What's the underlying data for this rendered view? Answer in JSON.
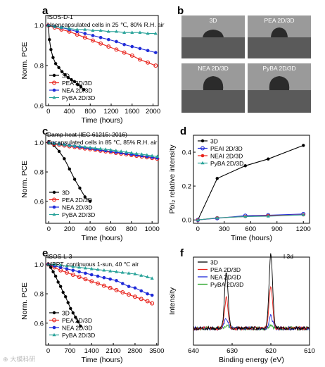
{
  "panels": {
    "a": {
      "letter": "a",
      "annotation_1": "ISOS-D-1",
      "annotation_2": "Unencapsulated cells in 25 ℃, 80% R.H. air"
    },
    "b": {
      "letter": "b",
      "photo_labels": [
        "3D",
        "PEA 2D/3D",
        "NEA 2D/3D",
        "PyBA 2D/3D"
      ]
    },
    "c": {
      "letter": "c",
      "annotation_1": "Damp-heat (IEC 61215: 2016)",
      "annotation_2": "Encapsulated cells in 85 ℃, 85% R.H. air"
    },
    "d": {
      "letter": "d"
    },
    "e": {
      "letter": "e",
      "annotation_1": "ISOS-L-3",
      "annotation_2": "MPPT, continuous 1-sun, 40 ℃ air"
    },
    "f": {
      "letter": "f",
      "annotation_1": "I 3d"
    }
  },
  "watermark": "⊕ 大模科研",
  "colors": {
    "3D": "#000000",
    "PEA": "#e8231c",
    "NEA": "#1f2ad8",
    "PyBA": "#2aa39a",
    "PyBA_xps": "#29a329",
    "drop": "#2b2b2b"
  },
  "chart_data": [
    {
      "id": "a",
      "type": "line",
      "xlabel": "Time (hours)",
      "ylabel": "Norm. PCE",
      "xlim": [
        -50,
        2100
      ],
      "ylim": [
        0.6,
        1.05
      ],
      "xticks": [
        0,
        400,
        800,
        1200,
        1600,
        2000
      ],
      "yticks": [
        0.6,
        0.8,
        1.0
      ],
      "xtick_labels": [
        "0",
        "400",
        "800",
        "1200",
        "1600",
        "2000"
      ],
      "ytick_labels": [
        "0.6",
        "0.8",
        "1.0"
      ],
      "legend": "lower-left",
      "legend_entries": [
        "3D",
        "PEA 2D/3D",
        "NEA 2D/3D",
        "PyBA 2D/3D"
      ],
      "series": [
        {
          "name": "3D",
          "color": "#000000",
          "x": [
            0,
            20,
            50,
            90,
            140,
            200,
            260,
            320,
            380,
            440,
            500,
            560,
            620,
            680
          ],
          "y": [
            1.0,
            0.93,
            0.88,
            0.84,
            0.81,
            0.79,
            0.77,
            0.755,
            0.74,
            0.73,
            0.72,
            0.705,
            0.695,
            0.68
          ]
        },
        {
          "name": "PEA 2D/3D",
          "color": "#e8231c",
          "x": [
            0,
            120,
            250,
            400,
            550,
            700,
            850,
            1000,
            1150,
            1300,
            1450,
            1600,
            1750,
            1900,
            2050
          ],
          "y": [
            1.0,
            0.99,
            0.98,
            0.97,
            0.955,
            0.94,
            0.925,
            0.91,
            0.895,
            0.88,
            0.865,
            0.85,
            0.83,
            0.815,
            0.8
          ]
        },
        {
          "name": "NEA 2D/3D",
          "color": "#1f2ad8",
          "x": [
            0,
            120,
            250,
            400,
            550,
            700,
            850,
            1000,
            1150,
            1300,
            1450,
            1600,
            1750,
            1900,
            2050
          ],
          "y": [
            1.0,
            0.995,
            0.99,
            0.98,
            0.97,
            0.96,
            0.95,
            0.94,
            0.93,
            0.92,
            0.905,
            0.895,
            0.885,
            0.875,
            0.865
          ]
        },
        {
          "name": "PyBA 2D/3D",
          "color": "#2aa39a",
          "x": [
            0,
            120,
            250,
            400,
            550,
            700,
            850,
            1000,
            1150,
            1300,
            1450,
            1600,
            1750,
            1900,
            2050
          ],
          "y": [
            1.0,
            0.995,
            0.99,
            0.985,
            0.98,
            0.98,
            0.975,
            0.975,
            0.97,
            0.97,
            0.965,
            0.965,
            0.965,
            0.96,
            0.96
          ]
        }
      ]
    },
    {
      "id": "c",
      "type": "line",
      "xlabel": "Time (hours)",
      "ylabel": "Norm. PCE",
      "xlim": [
        -30,
        1060
      ],
      "ylim": [
        0.45,
        1.05
      ],
      "xticks": [
        0,
        200,
        400,
        600,
        800,
        1000
      ],
      "yticks": [
        0.6,
        0.8,
        1.0
      ],
      "xtick_labels": [
        "0",
        "200",
        "400",
        "600",
        "800",
        "1000"
      ],
      "ytick_labels": [
        "0.6",
        "0.8",
        "1.0"
      ],
      "legend": "lower-left",
      "legend_entries": [
        "3D",
        "PEA 2D/3D",
        "NEA 2D/3D",
        "PyBA 2D/3D"
      ],
      "series": [
        {
          "name": "3D",
          "color": "#000000",
          "x": [
            0,
            50,
            100,
            150,
            200,
            250,
            300,
            350,
            400
          ],
          "y": [
            1.0,
            0.98,
            0.94,
            0.89,
            0.82,
            0.75,
            0.69,
            0.63,
            0.6
          ]
        },
        {
          "name": "PEA 2D/3D",
          "color": "#e8231c",
          "x": [
            0,
            50,
            100,
            150,
            200,
            250,
            300,
            350,
            400,
            450,
            500,
            550,
            600,
            650,
            700,
            750,
            800,
            850,
            900,
            950,
            1000,
            1050
          ],
          "y": [
            1.0,
            0.99,
            0.985,
            0.98,
            0.975,
            0.97,
            0.965,
            0.96,
            0.955,
            0.95,
            0.945,
            0.94,
            0.935,
            0.93,
            0.925,
            0.92,
            0.915,
            0.91,
            0.905,
            0.9,
            0.895,
            0.89
          ]
        },
        {
          "name": "NEA 2D/3D",
          "color": "#1f2ad8",
          "x": [
            0,
            50,
            100,
            150,
            200,
            250,
            300,
            350,
            400,
            450,
            500,
            550,
            600,
            650,
            700,
            750,
            800,
            850,
            900,
            950,
            1000,
            1050
          ],
          "y": [
            1.0,
            0.995,
            0.99,
            0.985,
            0.98,
            0.975,
            0.97,
            0.965,
            0.96,
            0.955,
            0.95,
            0.945,
            0.94,
            0.935,
            0.93,
            0.925,
            0.92,
            0.915,
            0.91,
            0.905,
            0.9,
            0.895
          ]
        },
        {
          "name": "PyBA 2D/3D",
          "color": "#2aa39a",
          "x": [
            0,
            50,
            100,
            150,
            200,
            250,
            300,
            350,
            400,
            450,
            500,
            550,
            600,
            650,
            700,
            750,
            800,
            850,
            900,
            950,
            1000,
            1050
          ],
          "y": [
            1.0,
            0.995,
            0.99,
            0.985,
            0.98,
            0.978,
            0.975,
            0.97,
            0.966,
            0.962,
            0.958,
            0.954,
            0.95,
            0.945,
            0.94,
            0.935,
            0.93,
            0.925,
            0.92,
            0.915,
            0.91,
            0.905
          ]
        }
      ]
    },
    {
      "id": "d",
      "type": "line",
      "xlabel": "Time (hours)",
      "ylabel": "PbI₂ relative intensity",
      "xlim": [
        -50,
        1270
      ],
      "ylim": [
        -0.02,
        0.5
      ],
      "xticks": [
        0,
        300,
        600,
        900,
        1200
      ],
      "yticks": [
        0.0,
        0.2,
        0.4
      ],
      "xtick_labels": [
        "0",
        "300",
        "600",
        "900",
        "1200"
      ],
      "ytick_labels": [
        "0.0",
        "0.2",
        "0.4"
      ],
      "legend": "top-left",
      "legend_entries": [
        "3D",
        "PEAI 2D/3D",
        "NEAI 2D/3D",
        "PyBA 2D/3D"
      ],
      "series": [
        {
          "name": "3D",
          "color": "#000000",
          "x": [
            0,
            220,
            540,
            800,
            1200
          ],
          "y": [
            0.0,
            0.245,
            0.32,
            0.36,
            0.44
          ]
        },
        {
          "name": "PEAI 2D/3D",
          "color": "#1f2ad8",
          "x": [
            0,
            220,
            540,
            800,
            1200
          ],
          "y": [
            0.0,
            0.01,
            0.025,
            0.028,
            0.035
          ]
        },
        {
          "name": "NEAI 2D/3D",
          "color": "#e8231c",
          "x": [
            0,
            220,
            540,
            800,
            1200
          ],
          "y": [
            0.0,
            0.012,
            0.02,
            0.025,
            0.03
          ]
        },
        {
          "name": "PyBA 2D/3D",
          "color": "#2aa39a",
          "x": [
            0,
            220,
            540,
            800,
            1200
          ],
          "y": [
            0.0,
            0.012,
            0.02,
            0.022,
            0.03
          ]
        }
      ]
    },
    {
      "id": "e",
      "type": "line",
      "xlabel": "Time (hours)",
      "ylabel": "Norm. PCE",
      "xlim": [
        -80,
        3550
      ],
      "ylim": [
        0.45,
        1.05
      ],
      "xticks": [
        0,
        700,
        1400,
        2100,
        2800,
        3500
      ],
      "yticks": [
        0.6,
        0.8,
        1.0
      ],
      "xtick_labels": [
        "0",
        "700",
        "1400",
        "2100",
        "2800",
        "3500"
      ],
      "ytick_labels": [
        "0.6",
        "0.8",
        "1.0"
      ],
      "legend": "lower-left",
      "legend_entries": [
        "3D",
        "PEA 2D/3D",
        "NEA 2D/3D",
        "PyBA 2D/3D"
      ],
      "series": [
        {
          "name": "3D",
          "color": "#000000",
          "x": [
            0,
            80,
            160,
            240,
            320,
            400,
            480,
            560,
            640,
            720,
            800,
            880,
            960,
            1040
          ],
          "y": [
            1.0,
            0.98,
            0.95,
            0.92,
            0.88,
            0.85,
            0.81,
            0.78,
            0.74,
            0.7,
            0.67,
            0.64,
            0.61,
            0.58
          ]
        },
        {
          "name": "PEA 2D/3D",
          "color": "#e8231c",
          "x": [
            0,
            200,
            400,
            600,
            800,
            1000,
            1200,
            1400,
            1600,
            1800,
            2000,
            2200,
            2400,
            2600,
            2800,
            3000,
            3200,
            3350
          ],
          "y": [
            1.0,
            0.98,
            0.96,
            0.945,
            0.93,
            0.915,
            0.9,
            0.885,
            0.87,
            0.855,
            0.84,
            0.825,
            0.81,
            0.795,
            0.78,
            0.765,
            0.75,
            0.735
          ]
        },
        {
          "name": "NEA 2D/3D",
          "color": "#1f2ad8",
          "x": [
            0,
            200,
            400,
            600,
            800,
            1000,
            1200,
            1400,
            1600,
            1800,
            2000,
            2200,
            2400,
            2600,
            2800,
            3000,
            3200,
            3350
          ],
          "y": [
            1.0,
            0.99,
            0.98,
            0.97,
            0.96,
            0.95,
            0.94,
            0.93,
            0.92,
            0.91,
            0.9,
            0.89,
            0.87,
            0.85,
            0.84,
            0.82,
            0.8,
            0.79
          ]
        },
        {
          "name": "PyBA 2D/3D",
          "color": "#2aa39a",
          "x": [
            0,
            200,
            400,
            600,
            800,
            1000,
            1200,
            1400,
            1600,
            1800,
            2000,
            2200,
            2400,
            2600,
            2800,
            3000,
            3200,
            3350
          ],
          "y": [
            1.0,
            1.0,
            0.995,
            0.99,
            0.985,
            0.98,
            0.975,
            0.97,
            0.965,
            0.96,
            0.955,
            0.95,
            0.945,
            0.94,
            0.935,
            0.925,
            0.915,
            0.905
          ]
        }
      ]
    },
    {
      "id": "f",
      "type": "line",
      "xlabel": "Binding energy (eV)",
      "ylabel": "Intensity",
      "xlim": [
        640,
        610
      ],
      "ylim": [
        0,
        1.15
      ],
      "xticks": [
        640,
        630,
        620,
        610
      ],
      "yticks": [],
      "xtick_labels": [
        "640",
        "630",
        "620",
        "610"
      ],
      "ytick_labels": [],
      "legend": "top-left",
      "legend_entries": [
        "3D",
        "PEA 2D/3D",
        "NEA 2D/3D",
        "PyBA 2D/3D"
      ],
      "peaks": [
        631.5,
        620.0
      ],
      "series": [
        {
          "name": "3D",
          "color": "#000000",
          "heights": [
            0.72,
            0.98
          ]
        },
        {
          "name": "PEA 2D/3D",
          "color": "#e8231c",
          "heights": [
            0.4,
            0.56
          ]
        },
        {
          "name": "NEA 2D/3D",
          "color": "#1f2ad8",
          "heights": [
            0.13,
            0.16
          ]
        },
        {
          "name": "PyBA 2D/3D",
          "color": "#29a329",
          "heights": [
            0.04,
            0.05
          ]
        }
      ]
    }
  ]
}
